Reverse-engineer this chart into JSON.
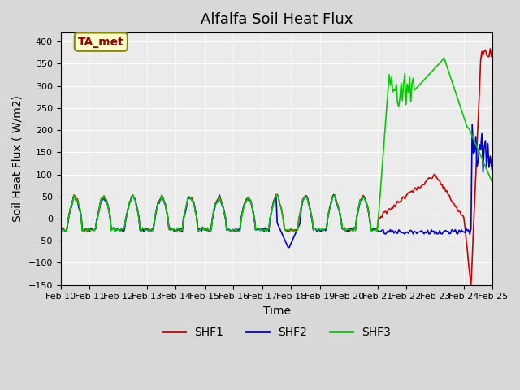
{
  "title": "Alfalfa Soil Heat Flux",
  "xlabel": "Time",
  "ylabel": "Soil Heat Flux ( W/m2)",
  "ylim": [
    -150,
    420
  ],
  "yticks": [
    -150,
    -100,
    -50,
    0,
    50,
    100,
    150,
    200,
    250,
    300,
    350,
    400
  ],
  "xlim": [
    0,
    15
  ],
  "xtick_labels": [
    "Feb 10",
    "Feb 11",
    "Feb 12",
    "Feb 13",
    "Feb 14",
    "Feb 15",
    "Feb 16",
    "Feb 17",
    "Feb 18",
    "Feb 19",
    "Feb 20",
    "Feb 21",
    "Feb 22",
    "Feb 23",
    "Feb 24",
    "Feb 25"
  ],
  "colors": {
    "SHF1": "#cc0000",
    "SHF2": "#0000cc",
    "SHF3": "#00cc00"
  },
  "legend_entries": [
    "SHF1",
    "SHF2",
    "SHF3"
  ],
  "annotation_text": "TA_met",
  "annotation_bg": "#ffffcc",
  "annotation_border": "#888800",
  "annotation_text_color": "#990000",
  "fig_bg": "#d8d8d8",
  "plot_bg": "#ebebeb",
  "line_width": 1.2
}
